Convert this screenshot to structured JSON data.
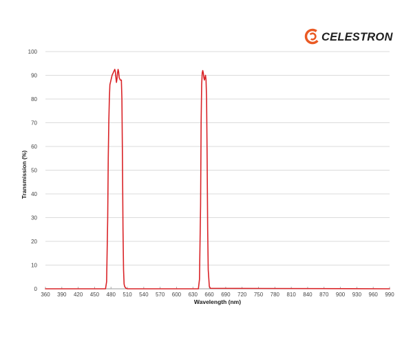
{
  "brand": {
    "name": "CELESTRON",
    "icon": "celestron-swirl-icon",
    "colors": {
      "swirl": "#ea5a24",
      "text": "#1f1f1f"
    }
  },
  "colors": {
    "series": "#d92226",
    "grid": "#cfcfcf",
    "axis": "#9a9a9a"
  },
  "chart_data": {
    "type": "line",
    "title": "",
    "xlabel": "Wavelength (nm)",
    "ylabel": "Transmission (%)",
    "xlim": [
      360,
      990
    ],
    "ylim": [
      0,
      100
    ],
    "x_ticks": [
      360,
      390,
      420,
      450,
      480,
      510,
      540,
      570,
      600,
      630,
      660,
      690,
      720,
      750,
      780,
      810,
      840,
      870,
      900,
      930,
      960,
      990
    ],
    "y_ticks": [
      0,
      10,
      20,
      30,
      40,
      50,
      60,
      70,
      80,
      90,
      100
    ],
    "grid": "horizontal",
    "legend": "none",
    "series": [
      {
        "color": "#d92226",
        "x": [
          360,
          470,
          472,
          474,
          475,
          476,
          477,
          478,
          480,
          482,
          484,
          486,
          487,
          488,
          489,
          490,
          491,
          492,
          493,
          494,
          495,
          497,
          499,
          500,
          501,
          502,
          503,
          504,
          505,
          507,
          510,
          640,
          642,
          644,
          645,
          646,
          647,
          648,
          649,
          650,
          651,
          652,
          653,
          654,
          655,
          656,
          657,
          658,
          660,
          662,
          990
        ],
        "y": [
          0,
          0,
          3,
          30,
          55,
          70,
          80,
          86,
          88,
          90,
          91,
          92,
          92.5,
          91.5,
          89,
          87,
          88.5,
          91,
          92.5,
          91.5,
          89,
          88,
          88,
          80,
          55,
          25,
          8,
          2,
          1,
          0.3,
          0,
          0,
          4,
          35,
          70,
          86,
          91,
          92,
          91,
          89,
          88,
          89,
          90,
          88,
          80,
          55,
          25,
          8,
          1,
          0.2,
          0
        ]
      }
    ]
  }
}
